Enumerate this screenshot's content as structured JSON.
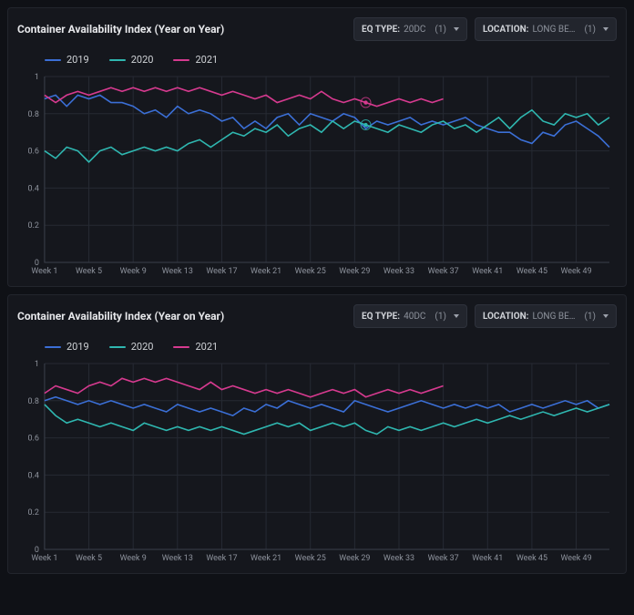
{
  "colors": {
    "background": "#0f1116",
    "panel_bg": "#15171d",
    "panel_border": "#22252d",
    "grid": "#262a33",
    "axis_border": "#3a3f4a",
    "tick_text": "#8d929c",
    "title_text": "#e6e7ea",
    "pill_bg": "#22252d",
    "pill_border": "#2e323c"
  },
  "fonts": {
    "title_size": 12,
    "title_weight": 700,
    "legend_size": 11,
    "tick_size": 9,
    "pill_size": 10
  },
  "y_axis": {
    "min": 0,
    "max": 1,
    "ticks": [
      0,
      0.2,
      0.4,
      0.6,
      0.8,
      1
    ]
  },
  "x_axis": {
    "weeks": 52,
    "tick_step": 4,
    "tick_label_prefix": "Week ",
    "tick_positions": [
      1,
      5,
      9,
      13,
      17,
      21,
      25,
      29,
      33,
      37,
      41,
      45,
      49
    ]
  },
  "legend_labels": {
    "s2019": "2019",
    "s2020": "2020",
    "s2021": "2021"
  },
  "series_colors": {
    "s2019": "#3b6fd6",
    "s2020": "#2fb7b0",
    "s2021": "#d63a8f"
  },
  "line_width": 1.6,
  "panels": [
    {
      "title": "Container Availability Index (Year on Year)",
      "filters": {
        "eq_type": {
          "label": "EQ TYPE:",
          "value": "20DC",
          "count": "(1)"
        },
        "location": {
          "label": "LOCATION:",
          "value": "LONG BE…",
          "count": "(1)"
        }
      },
      "highlight": {
        "series": "s2020",
        "week": 30,
        "ring_color": "#2fb7b0"
      },
      "highlight2": {
        "series": "s2021",
        "week": 30,
        "ring_color": "#d63a8f"
      },
      "series": {
        "s2019": [
          0.88,
          0.9,
          0.84,
          0.9,
          0.88,
          0.9,
          0.86,
          0.86,
          0.84,
          0.8,
          0.82,
          0.78,
          0.84,
          0.8,
          0.82,
          0.8,
          0.76,
          0.78,
          0.72,
          0.76,
          0.72,
          0.78,
          0.8,
          0.74,
          0.8,
          0.78,
          0.76,
          0.8,
          0.78,
          0.72,
          0.76,
          0.74,
          0.76,
          0.78,
          0.74,
          0.76,
          0.74,
          0.76,
          0.78,
          0.74,
          0.72,
          0.7,
          0.7,
          0.66,
          0.64,
          0.7,
          0.68,
          0.74,
          0.76,
          0.72,
          0.68,
          0.62
        ],
        "s2020": [
          0.6,
          0.56,
          0.62,
          0.6,
          0.54,
          0.6,
          0.62,
          0.58,
          0.6,
          0.62,
          0.6,
          0.62,
          0.6,
          0.64,
          0.66,
          0.62,
          0.66,
          0.7,
          0.68,
          0.72,
          0.7,
          0.74,
          0.68,
          0.72,
          0.74,
          0.7,
          0.76,
          0.72,
          0.76,
          0.74,
          0.72,
          0.7,
          0.74,
          0.72,
          0.7,
          0.74,
          0.76,
          0.72,
          0.74,
          0.7,
          0.74,
          0.78,
          0.72,
          0.78,
          0.82,
          0.76,
          0.74,
          0.8,
          0.78,
          0.8,
          0.74,
          0.78
        ],
        "s2021": [
          0.9,
          0.86,
          0.9,
          0.92,
          0.9,
          0.92,
          0.94,
          0.92,
          0.94,
          0.92,
          0.94,
          0.92,
          0.94,
          0.92,
          0.94,
          0.92,
          0.9,
          0.92,
          0.9,
          0.88,
          0.9,
          0.86,
          0.88,
          0.9,
          0.88,
          0.92,
          0.88,
          0.86,
          0.88,
          0.86,
          0.84,
          0.86,
          0.88,
          0.86,
          0.88,
          0.86,
          0.88
        ]
      }
    },
    {
      "title": "Container Availability Index (Year on Year)",
      "filters": {
        "eq_type": {
          "label": "EQ TYPE:",
          "value": "40DC",
          "count": "(1)"
        },
        "location": {
          "label": "LOCATION:",
          "value": "LONG BE…",
          "count": "(1)"
        }
      },
      "series": {
        "s2019": [
          0.8,
          0.82,
          0.8,
          0.78,
          0.8,
          0.78,
          0.8,
          0.78,
          0.76,
          0.78,
          0.76,
          0.74,
          0.78,
          0.76,
          0.74,
          0.76,
          0.74,
          0.72,
          0.76,
          0.74,
          0.78,
          0.76,
          0.8,
          0.78,
          0.76,
          0.78,
          0.76,
          0.74,
          0.8,
          0.78,
          0.76,
          0.74,
          0.76,
          0.78,
          0.8,
          0.78,
          0.76,
          0.78,
          0.76,
          0.78,
          0.76,
          0.78,
          0.74,
          0.76,
          0.78,
          0.76,
          0.78,
          0.8,
          0.78,
          0.8,
          0.76,
          0.78
        ],
        "s2020": [
          0.78,
          0.72,
          0.68,
          0.7,
          0.68,
          0.66,
          0.68,
          0.66,
          0.64,
          0.68,
          0.66,
          0.64,
          0.66,
          0.64,
          0.66,
          0.64,
          0.66,
          0.64,
          0.62,
          0.64,
          0.66,
          0.68,
          0.66,
          0.68,
          0.64,
          0.66,
          0.68,
          0.66,
          0.68,
          0.64,
          0.62,
          0.66,
          0.64,
          0.66,
          0.64,
          0.66,
          0.68,
          0.66,
          0.68,
          0.7,
          0.68,
          0.7,
          0.72,
          0.7,
          0.72,
          0.74,
          0.72,
          0.74,
          0.76,
          0.74,
          0.76,
          0.78
        ],
        "s2021": [
          0.84,
          0.88,
          0.86,
          0.84,
          0.88,
          0.9,
          0.88,
          0.92,
          0.9,
          0.92,
          0.9,
          0.92,
          0.9,
          0.88,
          0.86,
          0.9,
          0.86,
          0.88,
          0.86,
          0.84,
          0.86,
          0.84,
          0.86,
          0.84,
          0.82,
          0.84,
          0.86,
          0.84,
          0.86,
          0.82,
          0.84,
          0.86,
          0.84,
          0.86,
          0.84,
          0.86,
          0.88
        ]
      }
    }
  ]
}
